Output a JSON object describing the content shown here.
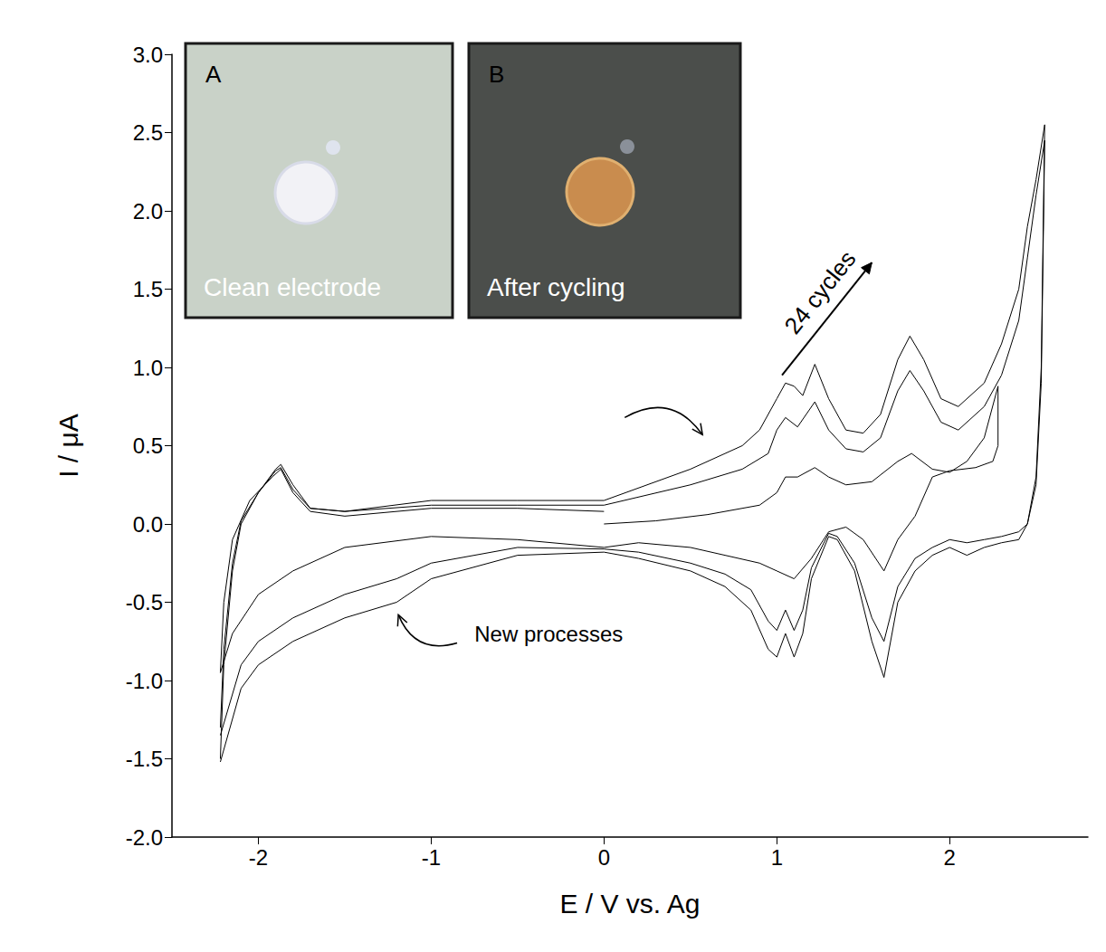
{
  "chart_data": {
    "type": "line",
    "x_label": "E / V vs. Ag",
    "y_label": "I / μA",
    "xlim": [
      -2.5,
      2.8
    ],
    "ylim": [
      -2.0,
      3.0
    ],
    "xticks": [
      -2,
      -1,
      0,
      1,
      2
    ],
    "yticks": [
      {
        "value": -2.0,
        "label": "-2.0"
      },
      {
        "value": -1.5,
        "label": "-1.5"
      },
      {
        "value": -1.0,
        "label": "-1.0"
      },
      {
        "value": -0.5,
        "label": "-0.5"
      },
      {
        "value": 0,
        "label": "0.0"
      },
      {
        "value": 0.5,
        "label": "0.5"
      },
      {
        "value": 1.0,
        "label": "1.0"
      },
      {
        "value": 1.5,
        "label": "1.5"
      },
      {
        "value": 2.0,
        "label": "2.0"
      },
      {
        "value": 2.5,
        "label": "2.5"
      },
      {
        "value": 3.0,
        "label": "3.0"
      }
    ],
    "grid": false,
    "series": [
      {
        "color": "#000000",
        "x": [
          0,
          0.3,
          0.6,
          0.9,
          1.0,
          1.05,
          1.12,
          1.22,
          1.3,
          1.4,
          1.55,
          1.7,
          1.78,
          1.9,
          2.0,
          2.1,
          2.2,
          2.28,
          2.28,
          2.25,
          2.15,
          2.0,
          1.9,
          1.8,
          1.7,
          1.62,
          1.5,
          1.4,
          1.3,
          1.2,
          1.1,
          1.0,
          0.9,
          0.7,
          0.5,
          0.2,
          0,
          -0.5,
          -1.0,
          -1.5,
          -1.8,
          -2.0,
          -2.15,
          -2.22,
          -2.2,
          -2.15,
          -2.05,
          -1.92,
          -1.87,
          -1.8,
          -1.7,
          -1.5,
          -1.0,
          -0.5,
          0
        ],
        "values": [
          0.0,
          0.02,
          0.06,
          0.12,
          0.2,
          0.3,
          0.3,
          0.36,
          0.3,
          0.25,
          0.27,
          0.4,
          0.45,
          0.35,
          0.33,
          0.4,
          0.55,
          0.88,
          0.5,
          0.4,
          0.36,
          0.34,
          0.3,
          0.05,
          -0.1,
          -0.3,
          -0.1,
          -0.02,
          -0.05,
          -0.22,
          -0.35,
          -0.3,
          -0.25,
          -0.2,
          -0.15,
          -0.12,
          -0.15,
          -0.1,
          -0.08,
          -0.15,
          -0.3,
          -0.45,
          -0.7,
          -0.95,
          -0.5,
          -0.1,
          0.15,
          0.3,
          0.35,
          0.2,
          0.08,
          0.05,
          0.1,
          0.1,
          0.08
        ]
      },
      {
        "color": "#000000",
        "x": [
          -2.22,
          -2.2,
          -2.15,
          -2.1,
          -2.0,
          -1.9,
          -1.87,
          -1.8,
          -1.7,
          -1.5,
          -1.0,
          -0.5,
          0,
          0.5,
          0.8,
          0.95,
          1.0,
          1.05,
          1.12,
          1.22,
          1.3,
          1.4,
          1.5,
          1.6,
          1.7,
          1.77,
          1.85,
          1.95,
          2.05,
          2.2,
          2.3,
          2.4,
          2.45,
          2.5,
          2.55,
          2.53,
          2.5,
          2.45,
          2.4,
          2.3,
          2.2,
          2.1,
          2.0,
          1.9,
          1.8,
          1.7,
          1.62,
          1.55,
          1.45,
          1.35,
          1.3,
          1.2,
          1.15,
          1.1,
          1.05,
          1.0,
          0.95,
          0.85,
          0.7,
          0.5,
          0.2,
          0,
          -0.5,
          -1.0,
          -1.2,
          -1.5,
          -1.8,
          -2.0,
          -2.1,
          -2.22
        ],
        "values": [
          -1.3,
          -0.8,
          -0.25,
          0.02,
          0.2,
          0.34,
          0.36,
          0.22,
          0.1,
          0.08,
          0.12,
          0.12,
          0.12,
          0.25,
          0.35,
          0.45,
          0.6,
          0.68,
          0.62,
          0.78,
          0.6,
          0.48,
          0.46,
          0.55,
          0.85,
          0.98,
          0.85,
          0.65,
          0.6,
          0.75,
          0.95,
          1.3,
          1.7,
          2.1,
          2.45,
          0.9,
          0.25,
          0.0,
          -0.05,
          -0.08,
          -0.1,
          -0.12,
          -0.1,
          -0.15,
          -0.22,
          -0.4,
          -0.75,
          -0.6,
          -0.25,
          -0.08,
          -0.06,
          -0.28,
          -0.55,
          -0.68,
          -0.55,
          -0.68,
          -0.62,
          -0.42,
          -0.32,
          -0.25,
          -0.18,
          -0.16,
          -0.15,
          -0.25,
          -0.35,
          -0.45,
          -0.6,
          -0.75,
          -0.9,
          -1.35
        ]
      },
      {
        "color": "#000000",
        "x": [
          -2.22,
          -2.2,
          -2.15,
          -2.1,
          -2.0,
          -1.9,
          -1.87,
          -1.8,
          -1.7,
          -1.5,
          -1.0,
          -0.5,
          0,
          0.5,
          0.8,
          0.9,
          1.0,
          1.05,
          1.1,
          1.15,
          1.22,
          1.3,
          1.4,
          1.5,
          1.6,
          1.7,
          1.77,
          1.85,
          1.95,
          2.05,
          2.2,
          2.3,
          2.4,
          2.45,
          2.5,
          2.55,
          2.53,
          2.5,
          2.45,
          2.4,
          2.3,
          2.2,
          2.1,
          2.0,
          1.9,
          1.8,
          1.7,
          1.62,
          1.55,
          1.45,
          1.35,
          1.3,
          1.2,
          1.15,
          1.1,
          1.05,
          1.0,
          0.95,
          0.85,
          0.7,
          0.5,
          0.2,
          0,
          -0.5,
          -1.0,
          -1.2,
          -1.5,
          -1.8,
          -2.0,
          -2.1,
          -2.22
        ],
        "values": [
          -1.5,
          -0.9,
          -0.3,
          0.0,
          0.2,
          0.35,
          0.38,
          0.25,
          0.1,
          0.08,
          0.15,
          0.15,
          0.15,
          0.35,
          0.5,
          0.6,
          0.8,
          0.9,
          0.88,
          0.82,
          1.02,
          0.8,
          0.6,
          0.58,
          0.7,
          1.05,
          1.2,
          1.05,
          0.8,
          0.75,
          0.9,
          1.15,
          1.5,
          1.9,
          2.2,
          2.55,
          1.0,
          0.3,
          0.0,
          -0.1,
          -0.12,
          -0.15,
          -0.2,
          -0.15,
          -0.2,
          -0.3,
          -0.5,
          -0.98,
          -0.75,
          -0.3,
          -0.1,
          -0.08,
          -0.35,
          -0.7,
          -0.85,
          -0.7,
          -0.85,
          -0.8,
          -0.55,
          -0.4,
          -0.3,
          -0.22,
          -0.18,
          -0.2,
          -0.35,
          -0.5,
          -0.6,
          -0.75,
          -0.9,
          -1.05,
          -1.52
        ]
      }
    ],
    "annotations": [
      {
        "text": "24 cycles",
        "x": 1.25,
        "y": 1.48,
        "arrow_from": [
          1.03,
          0.95
        ],
        "arrow_to": [
          1.55,
          1.67
        ],
        "line_style": "straight"
      },
      {
        "text": "New processes",
        "x": -0.32,
        "y": -0.7,
        "arrow_from": [
          -0.85,
          -0.76
        ],
        "arrow_to": [
          -1.19,
          -0.58
        ],
        "line_style": "curved"
      },
      {
        "arrow_from": [
          0.12,
          0.68
        ],
        "arrow_to": [
          0.57,
          0.57
        ],
        "line_style": "curved"
      }
    ],
    "insets": [
      {
        "letter": "A",
        "caption": "Clean electrode"
      },
      {
        "letter": "B",
        "caption": "After cycling"
      }
    ]
  }
}
